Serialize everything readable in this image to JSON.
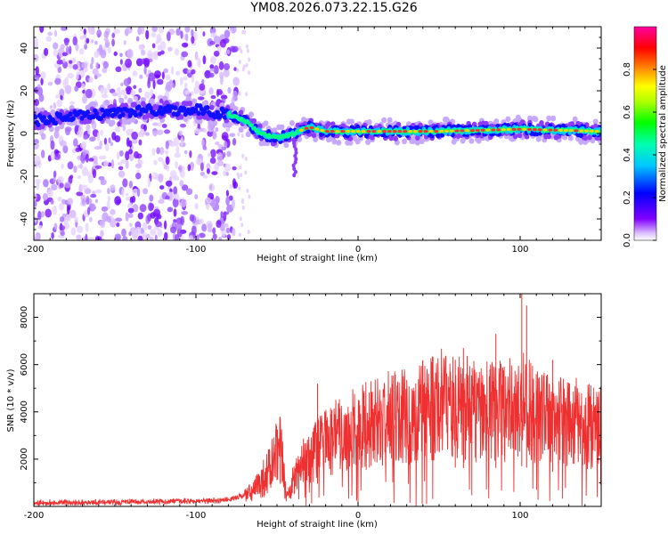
{
  "title": "YM08.2026.073.22.15.G26",
  "chart_data": [
    {
      "type": "heatmap",
      "description_hidden": false,
      "xlabel": "Height of straight line (km)",
      "ylabel": "Frequency (Hz)",
      "xlim": [
        -200,
        150
      ],
      "ylim": [
        -50,
        50
      ],
      "xticks": [
        -200,
        -100,
        0,
        100
      ],
      "xtick_labels": [
        "-200",
        "-100",
        "0",
        "100"
      ],
      "yticks": [
        -40,
        -20,
        0,
        20,
        40
      ],
      "ytick_labels": [
        "-40",
        "-20",
        "0",
        "20",
        "40"
      ],
      "colorbar": {
        "label": "Normalized spectral amplitude",
        "range": [
          0,
          1
        ],
        "ticks": [
          0.0,
          0.2,
          0.4,
          0.6,
          0.8
        ],
        "tick_labels": [
          "0.0",
          "0.2",
          "0.4",
          "0.6",
          "0.8"
        ],
        "colormap": [
          "#ffffff",
          "#8000ff",
          "#0000ff",
          "#00ffff",
          "#00ff00",
          "#ffff00",
          "#ff8000",
          "#ff0000",
          "#ff00c0"
        ]
      },
      "ridge": [
        {
          "x": -200,
          "y": 6
        },
        {
          "x": -160,
          "y": 9
        },
        {
          "x": -130,
          "y": 11
        },
        {
          "x": -100,
          "y": 11
        },
        {
          "x": -80,
          "y": 9
        },
        {
          "x": -70,
          "y": 6
        },
        {
          "x": -60,
          "y": 0
        },
        {
          "x": -50,
          "y": -2
        },
        {
          "x": -40,
          "y": 0
        },
        {
          "x": -30,
          "y": 3
        },
        {
          "x": -20,
          "y": 1
        },
        {
          "x": 0,
          "y": 1
        },
        {
          "x": 50,
          "y": 1
        },
        {
          "x": 100,
          "y": 2
        },
        {
          "x": 150,
          "y": 1
        }
      ],
      "noise_region_x": [
        -200,
        -75
      ]
    },
    {
      "type": "line",
      "xlabel": "Height of straight line (km)",
      "ylabel": "SNR (10 * v/v)",
      "xlim": [
        -200,
        150
      ],
      "ylim": [
        0,
        9000
      ],
      "xticks": [
        -200,
        -100,
        0,
        100
      ],
      "xtick_labels": [
        "-200",
        "-100",
        "0",
        "100"
      ],
      "yticks": [
        2000,
        4000,
        6000,
        8000
      ],
      "ytick_labels": [
        "2000",
        "4000",
        "6000",
        "8000"
      ],
      "color": "#ee3030",
      "envelope": [
        {
          "x": -200,
          "y": 150
        },
        {
          "x": -150,
          "y": 180
        },
        {
          "x": -100,
          "y": 220
        },
        {
          "x": -80,
          "y": 280
        },
        {
          "x": -65,
          "y": 600
        },
        {
          "x": -55,
          "y": 1500
        },
        {
          "x": -48,
          "y": 2400
        },
        {
          "x": -44,
          "y": 400
        },
        {
          "x": -35,
          "y": 1800
        },
        {
          "x": -20,
          "y": 2700
        },
        {
          "x": -5,
          "y": 3200
        },
        {
          "x": 10,
          "y": 3500
        },
        {
          "x": 30,
          "y": 3800
        },
        {
          "x": 50,
          "y": 4200
        },
        {
          "x": 70,
          "y": 4000
        },
        {
          "x": 90,
          "y": 4100
        },
        {
          "x": 100,
          "y": 4300
        },
        {
          "x": 110,
          "y": 3800
        },
        {
          "x": 130,
          "y": 3500
        },
        {
          "x": 150,
          "y": 3300
        }
      ],
      "peaks": [
        {
          "x": -48,
          "y": 3700
        },
        {
          "x": -25,
          "y": 5200
        },
        {
          "x": 60,
          "y": 6200
        },
        {
          "x": 65,
          "y": 6700
        },
        {
          "x": 85,
          "y": 7300
        },
        {
          "x": 101,
          "y": 9000
        },
        {
          "x": 104,
          "y": 8500
        },
        {
          "x": 120,
          "y": 6200
        },
        {
          "x": 150,
          "y": 5300
        }
      ]
    }
  ]
}
